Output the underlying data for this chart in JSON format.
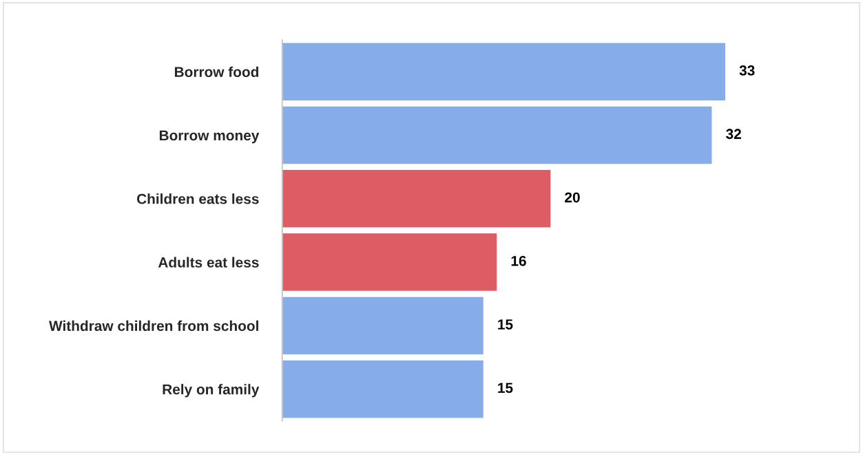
{
  "chart_data": {
    "type": "bar",
    "orientation": "horizontal",
    "categories": [
      "Borrow food",
      "Borrow money",
      "Children eats less",
      "Adults eat less",
      "Withdraw children from school",
      "Rely on family"
    ],
    "values": [
      33,
      32,
      20,
      16,
      15,
      15
    ],
    "colors": [
      "#86adea",
      "#86adea",
      "#de5c64",
      "#de5c64",
      "#86adea",
      "#86adea"
    ],
    "data_labels": true,
    "grid": false,
    "legend": false,
    "tick_labels": "y"
  }
}
